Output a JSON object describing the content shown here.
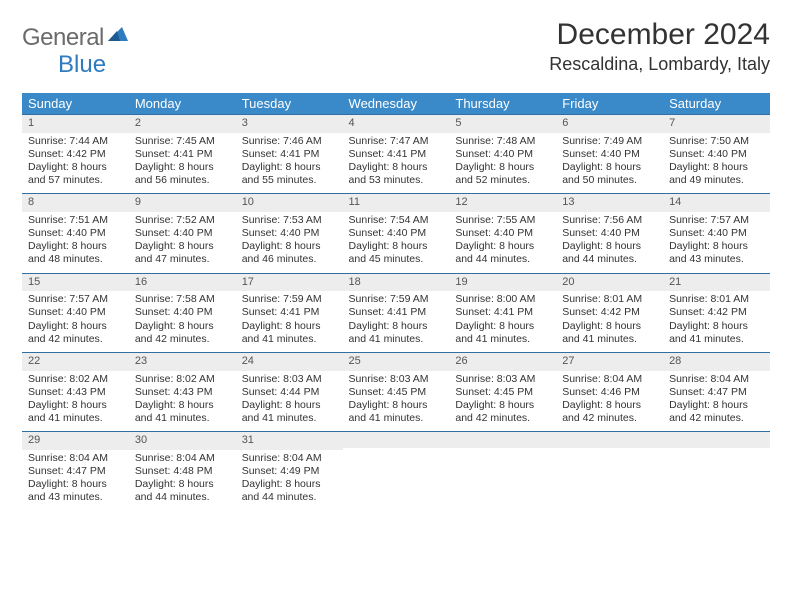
{
  "brand": {
    "part1": "General",
    "part2": "Blue"
  },
  "title": "December 2024",
  "location": "Rescaldina, Lombardy, Italy",
  "colors": {
    "header_bg": "#3a89c9",
    "header_text": "#ffffff",
    "daynum_bg": "#ededed",
    "daynum_border": "#2f6fa3",
    "body_bg": "#ffffff",
    "text": "#333333",
    "brand_gray": "#6b6b6b",
    "brand_blue": "#2f7bbf"
  },
  "weekdays": [
    "Sunday",
    "Monday",
    "Tuesday",
    "Wednesday",
    "Thursday",
    "Friday",
    "Saturday"
  ],
  "weeks": [
    [
      {
        "n": "1",
        "sr": "7:44 AM",
        "ss": "4:42 PM",
        "dl": "8 hours and 57 minutes."
      },
      {
        "n": "2",
        "sr": "7:45 AM",
        "ss": "4:41 PM",
        "dl": "8 hours and 56 minutes."
      },
      {
        "n": "3",
        "sr": "7:46 AM",
        "ss": "4:41 PM",
        "dl": "8 hours and 55 minutes."
      },
      {
        "n": "4",
        "sr": "7:47 AM",
        "ss": "4:41 PM",
        "dl": "8 hours and 53 minutes."
      },
      {
        "n": "5",
        "sr": "7:48 AM",
        "ss": "4:40 PM",
        "dl": "8 hours and 52 minutes."
      },
      {
        "n": "6",
        "sr": "7:49 AM",
        "ss": "4:40 PM",
        "dl": "8 hours and 50 minutes."
      },
      {
        "n": "7",
        "sr": "7:50 AM",
        "ss": "4:40 PM",
        "dl": "8 hours and 49 minutes."
      }
    ],
    [
      {
        "n": "8",
        "sr": "7:51 AM",
        "ss": "4:40 PM",
        "dl": "8 hours and 48 minutes."
      },
      {
        "n": "9",
        "sr": "7:52 AM",
        "ss": "4:40 PM",
        "dl": "8 hours and 47 minutes."
      },
      {
        "n": "10",
        "sr": "7:53 AM",
        "ss": "4:40 PM",
        "dl": "8 hours and 46 minutes."
      },
      {
        "n": "11",
        "sr": "7:54 AM",
        "ss": "4:40 PM",
        "dl": "8 hours and 45 minutes."
      },
      {
        "n": "12",
        "sr": "7:55 AM",
        "ss": "4:40 PM",
        "dl": "8 hours and 44 minutes."
      },
      {
        "n": "13",
        "sr": "7:56 AM",
        "ss": "4:40 PM",
        "dl": "8 hours and 44 minutes."
      },
      {
        "n": "14",
        "sr": "7:57 AM",
        "ss": "4:40 PM",
        "dl": "8 hours and 43 minutes."
      }
    ],
    [
      {
        "n": "15",
        "sr": "7:57 AM",
        "ss": "4:40 PM",
        "dl": "8 hours and 42 minutes."
      },
      {
        "n": "16",
        "sr": "7:58 AM",
        "ss": "4:40 PM",
        "dl": "8 hours and 42 minutes."
      },
      {
        "n": "17",
        "sr": "7:59 AM",
        "ss": "4:41 PM",
        "dl": "8 hours and 41 minutes."
      },
      {
        "n": "18",
        "sr": "7:59 AM",
        "ss": "4:41 PM",
        "dl": "8 hours and 41 minutes."
      },
      {
        "n": "19",
        "sr": "8:00 AM",
        "ss": "4:41 PM",
        "dl": "8 hours and 41 minutes."
      },
      {
        "n": "20",
        "sr": "8:01 AM",
        "ss": "4:42 PM",
        "dl": "8 hours and 41 minutes."
      },
      {
        "n": "21",
        "sr": "8:01 AM",
        "ss": "4:42 PM",
        "dl": "8 hours and 41 minutes."
      }
    ],
    [
      {
        "n": "22",
        "sr": "8:02 AM",
        "ss": "4:43 PM",
        "dl": "8 hours and 41 minutes."
      },
      {
        "n": "23",
        "sr": "8:02 AM",
        "ss": "4:43 PM",
        "dl": "8 hours and 41 minutes."
      },
      {
        "n": "24",
        "sr": "8:03 AM",
        "ss": "4:44 PM",
        "dl": "8 hours and 41 minutes."
      },
      {
        "n": "25",
        "sr": "8:03 AM",
        "ss": "4:45 PM",
        "dl": "8 hours and 41 minutes."
      },
      {
        "n": "26",
        "sr": "8:03 AM",
        "ss": "4:45 PM",
        "dl": "8 hours and 42 minutes."
      },
      {
        "n": "27",
        "sr": "8:04 AM",
        "ss": "4:46 PM",
        "dl": "8 hours and 42 minutes."
      },
      {
        "n": "28",
        "sr": "8:04 AM",
        "ss": "4:47 PM",
        "dl": "8 hours and 42 minutes."
      }
    ],
    [
      {
        "n": "29",
        "sr": "8:04 AM",
        "ss": "4:47 PM",
        "dl": "8 hours and 43 minutes."
      },
      {
        "n": "30",
        "sr": "8:04 AM",
        "ss": "4:48 PM",
        "dl": "8 hours and 44 minutes."
      },
      {
        "n": "31",
        "sr": "8:04 AM",
        "ss": "4:49 PM",
        "dl": "8 hours and 44 minutes."
      },
      null,
      null,
      null,
      null
    ]
  ],
  "labels": {
    "sunrise": "Sunrise:",
    "sunset": "Sunset:",
    "daylight": "Daylight:"
  }
}
